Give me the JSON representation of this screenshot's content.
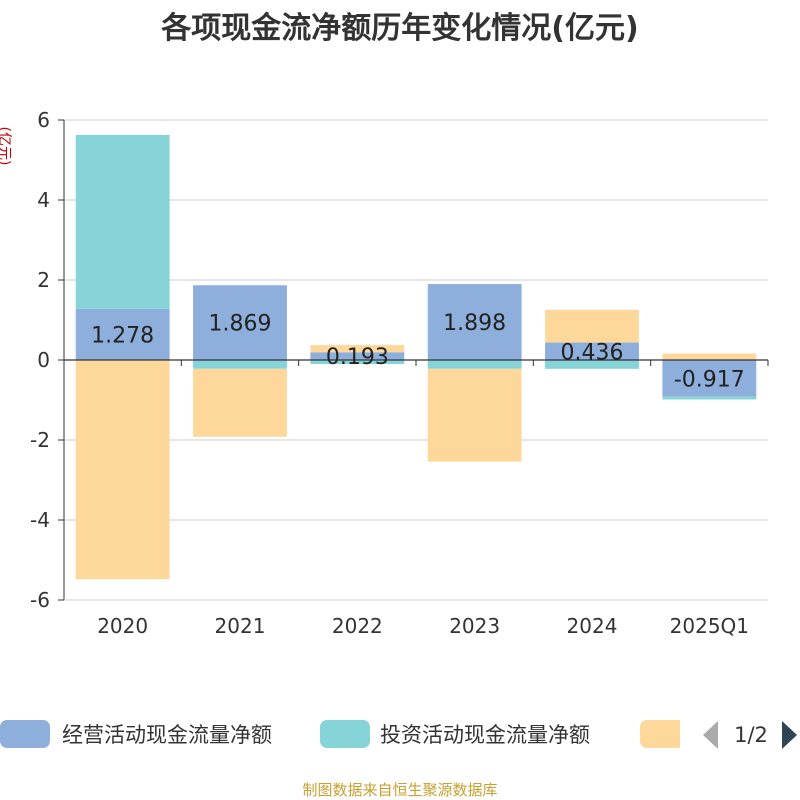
{
  "chart_data": {
    "type": "bar",
    "stacked": true,
    "title": "各项现金流净额历年变化情况(亿元)",
    "ylabel": "(亿元)",
    "categories": [
      "2020",
      "2021",
      "2022",
      "2023",
      "2024",
      "2025Q1"
    ],
    "ylim": [
      -6,
      6
    ],
    "yticks": [
      6,
      4,
      2,
      0,
      -2,
      -4,
      -6
    ],
    "grid": true,
    "series": [
      {
        "name": "经营活动现金流量净额",
        "color": "#8eaedb",
        "values": [
          1.278,
          1.869,
          0.193,
          1.898,
          0.436,
          -0.917
        ],
        "labels": [
          "1.278",
          "1.869",
          "0.193",
          "1.898",
          "0.436",
          "-0.917"
        ]
      },
      {
        "name": "投资活动现金流量净额",
        "color": "#86d4d8",
        "values": [
          4.35,
          -0.22,
          -0.1,
          -0.22,
          -0.22,
          -0.07
        ]
      },
      {
        "name": "",
        "color": "#fdd89a",
        "values": [
          -5.48,
          -1.7,
          0.18,
          -2.32,
          0.82,
          0.16
        ]
      }
    ],
    "legend": {
      "position": "bottom",
      "page": "1/2"
    }
  },
  "footer": "制图数据来自恒生聚源数据库"
}
